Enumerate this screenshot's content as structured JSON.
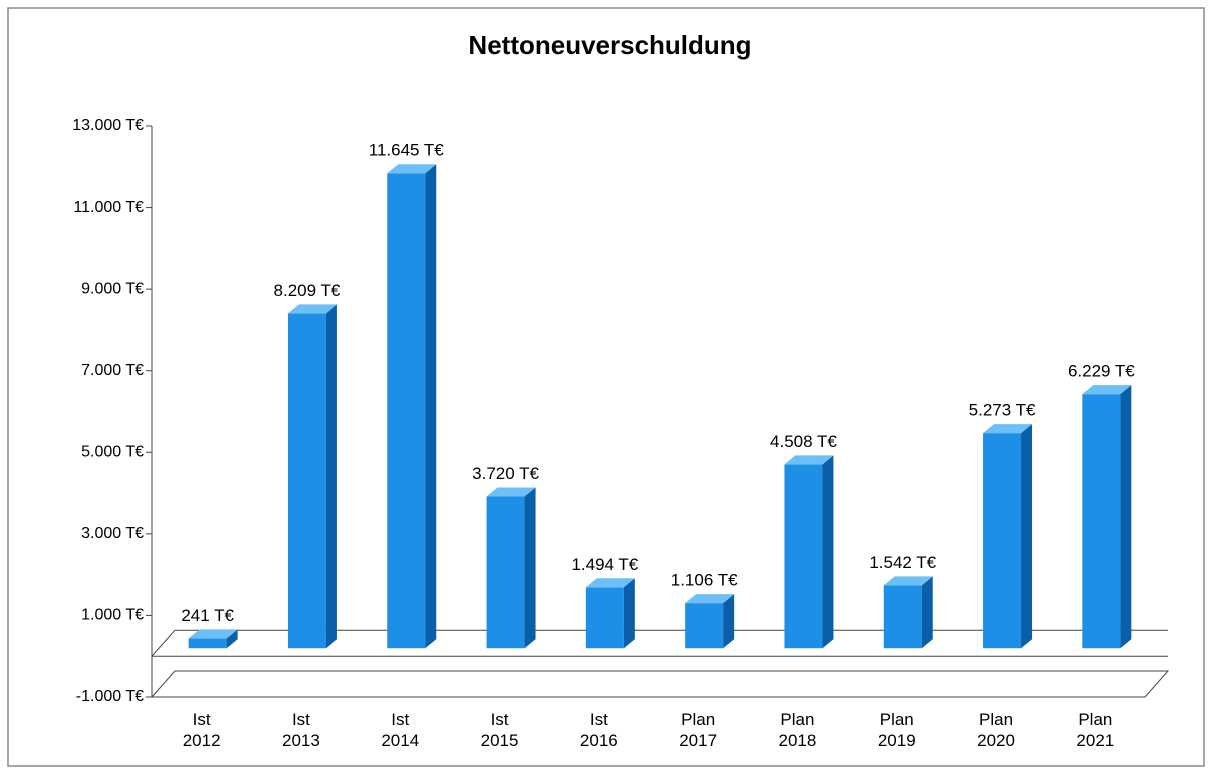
{
  "chart_data": {
    "type": "bar",
    "title": "Nettoneuverschuldung",
    "categories": [
      "Ist\n2012",
      "Ist\n2013",
      "Ist\n2014",
      "Ist\n2015",
      "Ist\n2016",
      "Plan\n2017",
      "Plan\n2018",
      "Plan\n2019",
      "Plan\n2020",
      "Plan\n2021"
    ],
    "values": [
      241,
      8209,
      11645,
      3720,
      1494,
      1106,
      4508,
      1542,
      5273,
      6229
    ],
    "value_labels": [
      "241 T€",
      "8.209 T€",
      "11.645 T€",
      "3.720 T€",
      "1.494 T€",
      "1.106 T€",
      "4.508 T€",
      "1.542 T€",
      "5.273 T€",
      "6.229 T€"
    ],
    "color": "#1e8fe6",
    "ylim": [
      -1000,
      13000
    ],
    "yticks": [
      {
        "value": -1000,
        "label": "-1.000 T€"
      },
      {
        "value": 1000,
        "label": "1.000 T€"
      },
      {
        "value": 3000,
        "label": "3.000 T€"
      },
      {
        "value": 5000,
        "label": "5.000 T€"
      },
      {
        "value": 7000,
        "label": "7.000 T€"
      },
      {
        "value": 9000,
        "label": "9.000 T€"
      },
      {
        "value": 11000,
        "label": "11.000 T€"
      },
      {
        "value": 13000,
        "label": "13.000 T€"
      }
    ],
    "grid": false
  }
}
